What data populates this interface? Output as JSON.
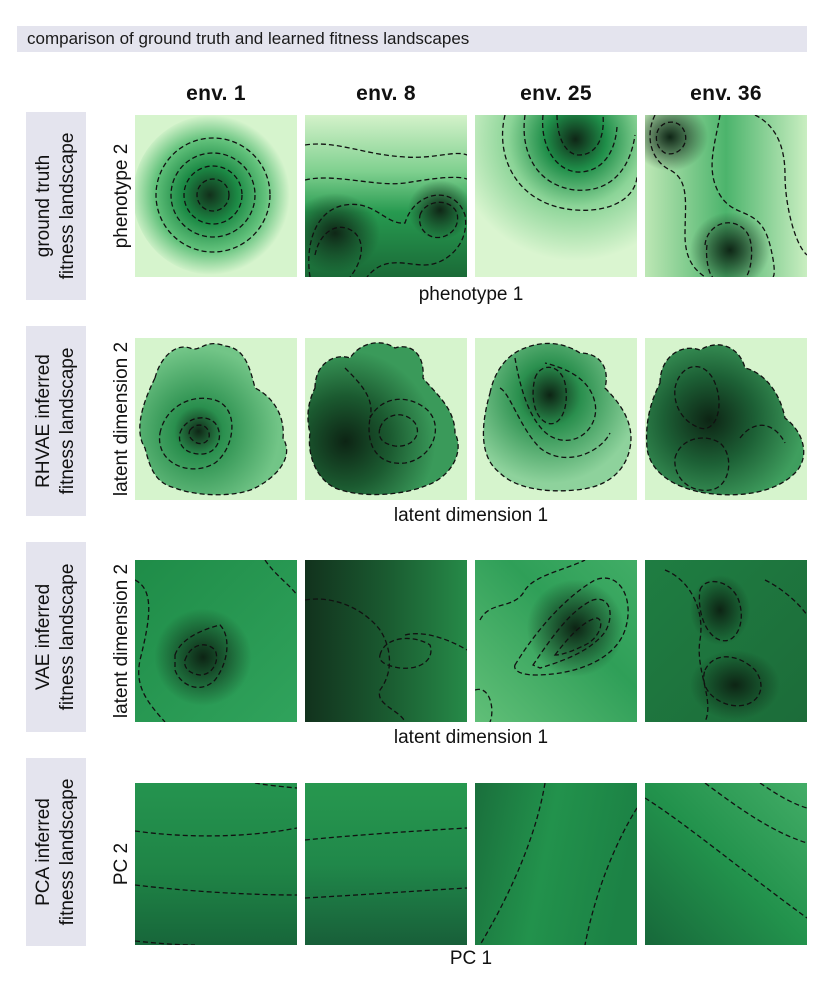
{
  "header": {
    "title": "comparison of ground truth and learned fitness landscapes"
  },
  "columns": [
    "env. 1",
    "env. 8",
    "env. 25",
    "env. 36"
  ],
  "rows": [
    {
      "label_line1": "ground truth",
      "label_line2": "fitness landscape",
      "ylabel": "phenotype 2",
      "xlabel": "phenotype 1"
    },
    {
      "label_line1": "RHVAE inferred",
      "label_line2": "fitness landscape",
      "ylabel": "latent dimension 2",
      "xlabel": "latent dimension 1"
    },
    {
      "label_line1": "VAE inferred",
      "label_line2": "fitness landscape",
      "ylabel": "latent dimension 2",
      "xlabel": "latent dimension 1"
    },
    {
      "label_line1": "PCA inferred",
      "label_line2": "fitness landscape",
      "ylabel": "PC 2",
      "xlabel": "PC 1"
    }
  ],
  "colors": {
    "low": "#d8f5cf",
    "mid": "#2a9a55",
    "high": "#0e2e18",
    "contour": "#111111"
  }
}
